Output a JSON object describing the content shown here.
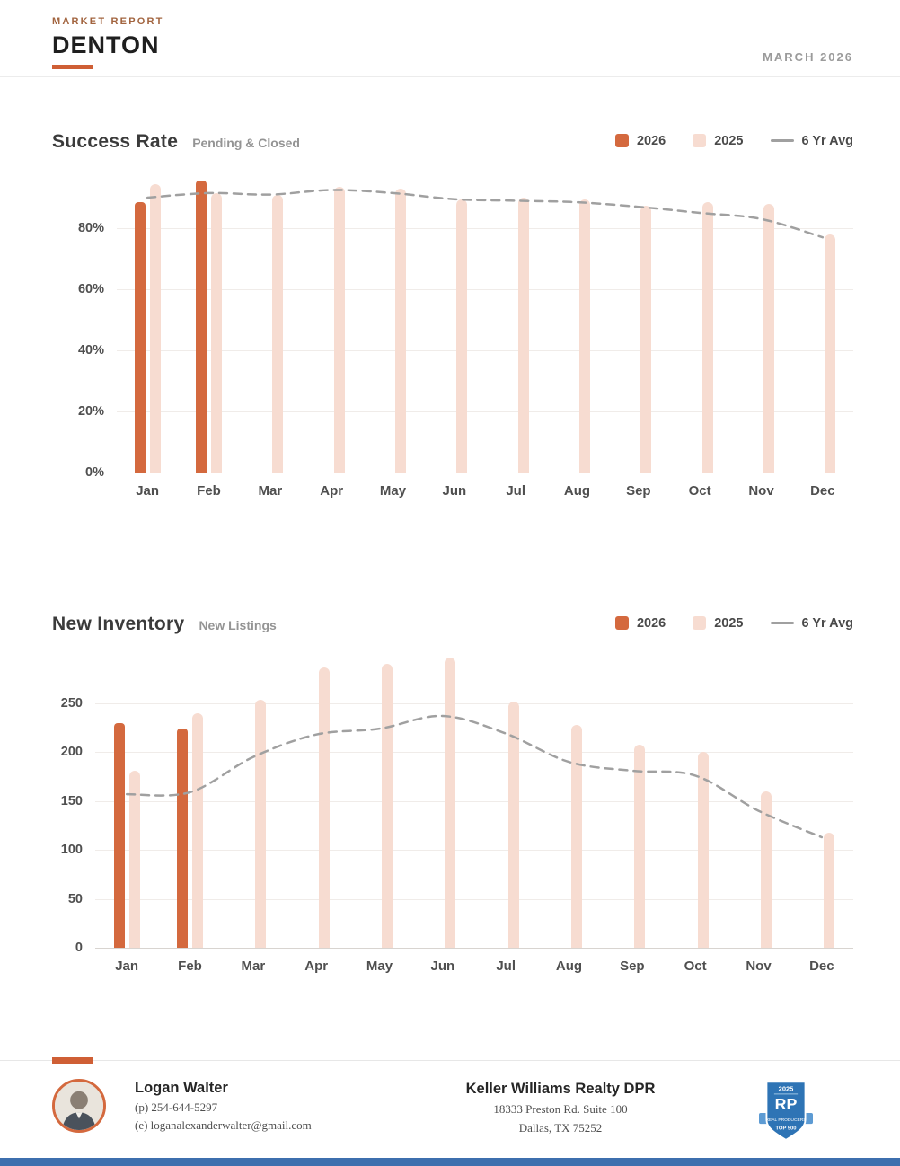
{
  "header": {
    "eyebrow": "MARKET REPORT",
    "city": "DENTON",
    "date": "MARCH 2026"
  },
  "chart_data": [
    {
      "type": "bar",
      "title": "Success Rate",
      "subtitle": "Pending & Closed",
      "categories": [
        "Jan",
        "Feb",
        "Mar",
        "Apr",
        "May",
        "Jun",
        "Jul",
        "Aug",
        "Sep",
        "Oct",
        "Nov",
        "Dec"
      ],
      "series": [
        {
          "name": "2026",
          "type": "bar",
          "color": "#d4693e",
          "values": [
            88.5,
            95.5,
            null,
            null,
            null,
            null,
            null,
            null,
            null,
            null,
            null,
            null
          ]
        },
        {
          "name": "2025",
          "type": "bar",
          "color": "#f7dcd1",
          "values": [
            94.5,
            91.5,
            91,
            93.5,
            93,
            89.5,
            90,
            89.5,
            87.5,
            88.5,
            88,
            78
          ]
        },
        {
          "name": "6 Yr Avg",
          "type": "line",
          "color": "#a0a0a0",
          "values": [
            90,
            91.5,
            91,
            92.5,
            91.5,
            89.5,
            89,
            88.5,
            87,
            85,
            83,
            77
          ]
        }
      ],
      "ylim": [
        0,
        100
      ],
      "yticks": [
        {
          "value": 0,
          "label": "0%"
        },
        {
          "value": 20,
          "label": "20%"
        },
        {
          "value": 40,
          "label": "40%"
        },
        {
          "value": 60,
          "label": "60%"
        },
        {
          "value": 80,
          "label": "80%"
        }
      ],
      "unit": "%",
      "grid": true,
      "legend_position": "top-right"
    },
    {
      "type": "bar",
      "title": "New Inventory",
      "subtitle": "New Listings",
      "categories": [
        "Jan",
        "Feb",
        "Mar",
        "Apr",
        "May",
        "Jun",
        "Jul",
        "Aug",
        "Sep",
        "Oct",
        "Nov",
        "Dec"
      ],
      "series": [
        {
          "name": "2026",
          "type": "bar",
          "color": "#d4693e",
          "values": [
            230,
            224,
            null,
            null,
            null,
            null,
            null,
            null,
            null,
            null,
            null,
            null
          ]
        },
        {
          "name": "2025",
          "type": "bar",
          "color": "#f7dcd1",
          "values": [
            181,
            240,
            254,
            287,
            290,
            297,
            252,
            228,
            208,
            200,
            160,
            118
          ]
        },
        {
          "name": "6 Yr Avg",
          "type": "line",
          "color": "#a0a0a0",
          "values": [
            157,
            159,
            195,
            218,
            224,
            237,
            219,
            190,
            181,
            176,
            140,
            113
          ]
        }
      ],
      "ylim": [
        0,
        305
      ],
      "yticks": [
        {
          "value": 0,
          "label": "0"
        },
        {
          "value": 50,
          "label": "50"
        },
        {
          "value": 100,
          "label": "100"
        },
        {
          "value": 150,
          "label": "150"
        },
        {
          "value": 200,
          "label": "200"
        },
        {
          "value": 250,
          "label": "250"
        }
      ],
      "grid": true,
      "legend_position": "top-right"
    }
  ],
  "footer": {
    "agent": {
      "name": "Logan Walter",
      "phone": "(p) 254-644-5297",
      "email": "(e) loganalexanderwalter@gmail.com"
    },
    "office": {
      "name": "Keller Williams Realty DPR",
      "address_line1": "18333 Preston Rd. Suite 100",
      "address_line2": "Dallas, TX 75252"
    },
    "badge": {
      "year": "2025",
      "initials": "RP",
      "org": "REAL PRODUCERS",
      "tier": "TOP 500"
    }
  },
  "colors": {
    "accent_orange": "#d4693e",
    "bar_2025_pink": "#f7dcd1",
    "avg_line_gray": "#a0a0a0",
    "footer_bar_blue": "#3d6fae",
    "badge_blue": "#2e74b5"
  }
}
